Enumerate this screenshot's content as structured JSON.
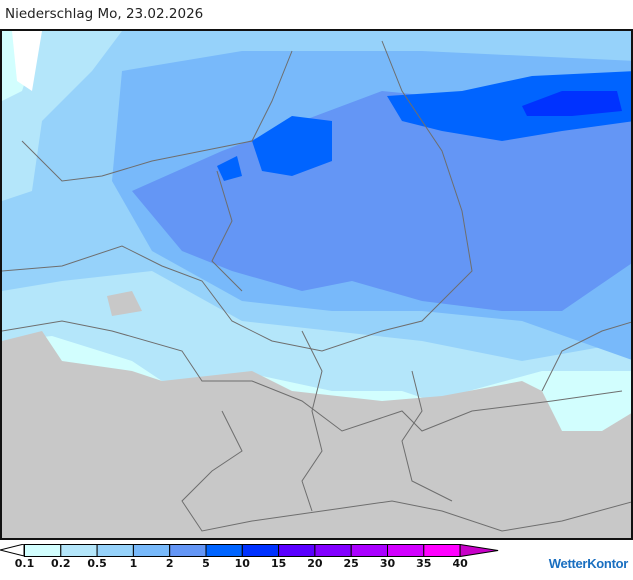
{
  "title": "Niederschlag Mo, 23.02.2026",
  "legend": {
    "ticks": [
      "0.1",
      "0.2",
      "0.5",
      "1",
      "2",
      "5",
      "10",
      "15",
      "20",
      "25",
      "30",
      "35",
      "40"
    ],
    "colors": [
      "#d2fefe",
      "#b4e6fa",
      "#96d2fa",
      "#78b9fa",
      "#6496f5",
      "#0064ff",
      "#0032ff",
      "#5a00ff",
      "#8200ff",
      "#aa00ff",
      "#d200ff",
      "#ff00ff",
      "#c800c8"
    ],
    "no_data_color": "#c8c8c8"
  },
  "logo": "WetterKontor"
}
